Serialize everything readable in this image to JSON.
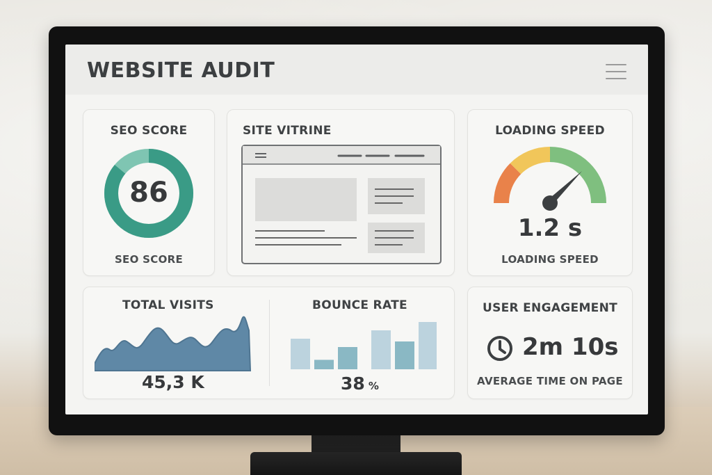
{
  "header": {
    "title": "WEBSITE AUDIT",
    "menu_icon": "hamburger-menu-icon"
  },
  "seo": {
    "title": "SEO SCORE",
    "value": "86",
    "label": "SEO SCORE",
    "score_fraction": 0.86,
    "ring_color": "#3a9b86",
    "track_color": "#7fc5b2"
  },
  "site": {
    "title": "SITE VITRINE"
  },
  "speed": {
    "title": "LOADING SPEED",
    "value": "1.2 s",
    "label": "LOADING SPEED",
    "gauge_colors": [
      "#e9824a",
      "#f1c65a",
      "#7fbf7f"
    ]
  },
  "visits": {
    "title": "TOTAL VISITS",
    "value": "45,3 K",
    "chart_color": "#5f88a6"
  },
  "bounce": {
    "title": "BOUNCE RATE",
    "value": "38",
    "unit": "%",
    "bars": [
      0.55,
      0.17,
      0.4,
      0.7,
      0.5,
      0.85
    ],
    "bar_colors": [
      "#bcd3de",
      "#8ab8c4"
    ]
  },
  "engagement": {
    "title": "USER ENGAGEMENT",
    "value": "2m 10s",
    "label": "AVERAGE TIME ON PAGE",
    "icon": "clock-icon"
  }
}
